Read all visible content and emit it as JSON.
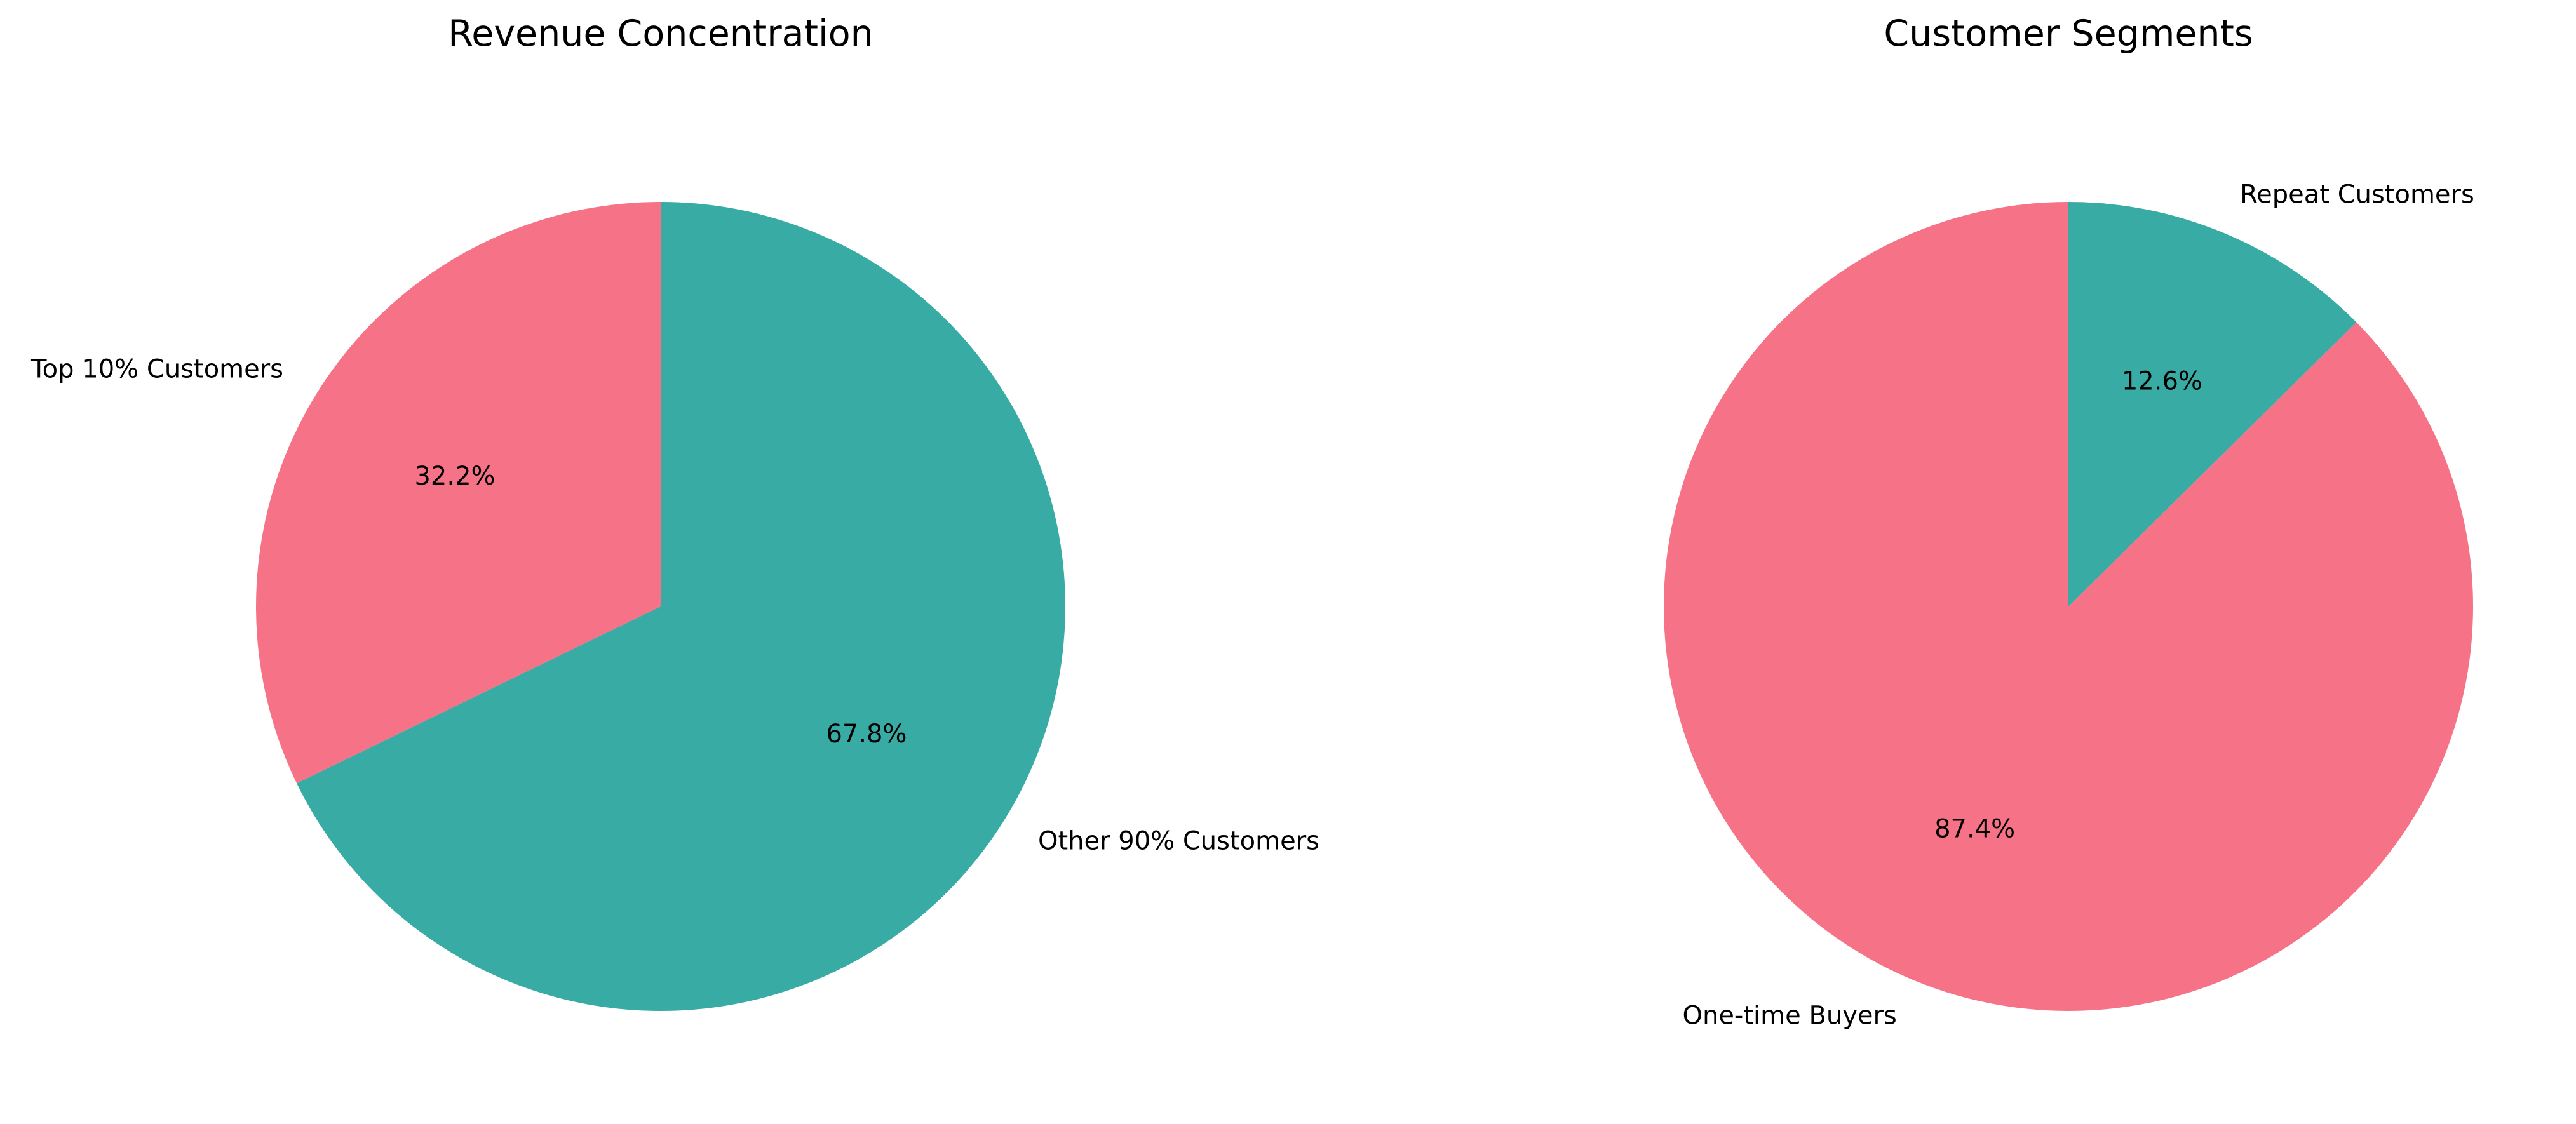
{
  "chart_data": [
    {
      "type": "pie",
      "title": "Revenue Concentration",
      "start_angle_deg": 90,
      "direction": "counterclockwise",
      "slices": [
        {
          "label": "Top 10% Customers",
          "value": 32.2,
          "pct_label": "32.2%",
          "color": "#F67287"
        },
        {
          "label": "Other 90% Customers",
          "value": 67.8,
          "pct_label": "67.8%",
          "color": "#37ABA4"
        }
      ]
    },
    {
      "type": "pie",
      "title": "Customer Segments",
      "start_angle_deg": 90,
      "direction": "counterclockwise",
      "slices": [
        {
          "label": "One-time Buyers",
          "value": 87.4,
          "pct_label": "87.4%",
          "color": "#F67287"
        },
        {
          "label": "Repeat Customers",
          "value": 12.6,
          "pct_label": "12.6%",
          "color": "#37ABA4"
        }
      ]
    }
  ]
}
